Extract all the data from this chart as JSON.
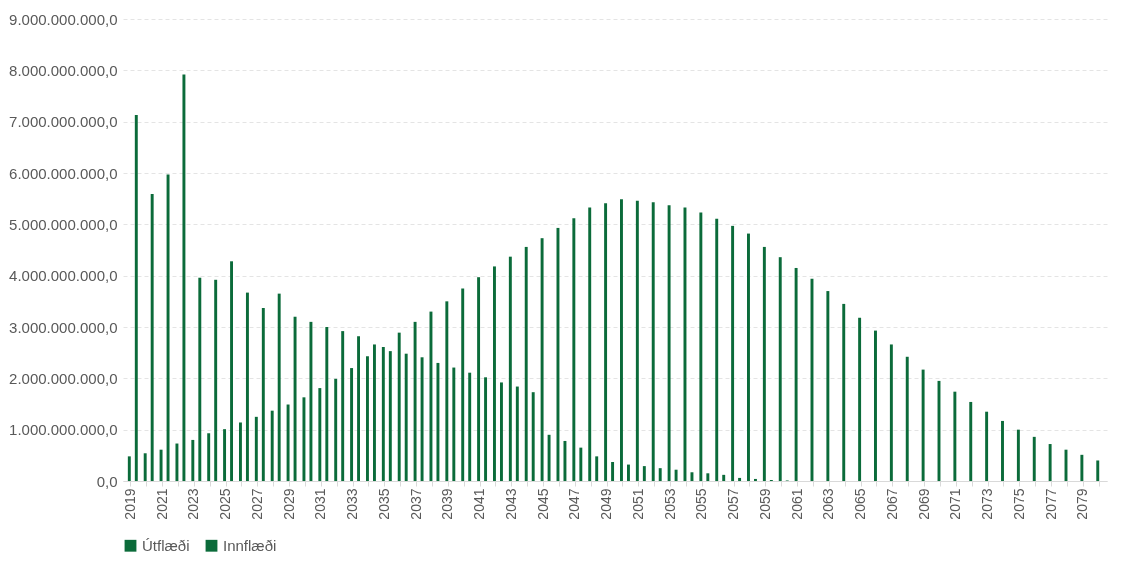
{
  "chart_data": {
    "type": "bar",
    "categories": [
      "2019",
      null,
      "2021",
      null,
      "2023",
      null,
      "2025",
      null,
      "2027",
      null,
      "2029",
      null,
      "2031",
      null,
      "2033",
      null,
      "2035",
      null,
      "2037",
      null,
      "2039",
      null,
      "2041",
      null,
      "2043",
      null,
      "2045",
      null,
      "2047",
      null,
      "2049",
      null,
      "2051",
      null,
      "2053",
      null,
      "2055",
      null,
      "2057",
      null,
      "2059",
      null,
      "2061",
      null,
      "2063",
      null,
      "2065",
      null,
      "2067",
      null,
      "2069",
      null,
      "2071",
      null,
      "2073",
      null,
      "2075",
      null,
      "2077",
      null,
      "2079",
      null
    ],
    "series": [
      {
        "name": "Útflæði",
        "color": "#0b6b3a",
        "values": [
          480000000,
          540000000,
          610000000,
          730000000,
          800000000,
          930000000,
          1010000000,
          1140000000,
          1250000000,
          1370000000,
          1490000000,
          1630000000,
          1810000000,
          1990000000,
          2200000000,
          2430000000,
          2610000000,
          2890000000,
          3100000000,
          3300000000,
          3500000000,
          3750000000,
          3970000000,
          4180000000,
          4370000000,
          4560000000,
          4730000000,
          4930000000,
          5120000000,
          5330000000,
          5410000000,
          5490000000,
          5460000000,
          5430000000,
          5370000000,
          5330000000,
          5230000000,
          5110000000,
          4970000000,
          4820000000,
          4560000000,
          4360000000,
          4150000000,
          3940000000,
          3700000000,
          3450000000,
          3180000000,
          2930000000,
          2660000000,
          2420000000,
          2170000000,
          1950000000,
          1740000000,
          1540000000,
          1350000000,
          1170000000,
          1000000000,
          860000000,
          720000000,
          610000000,
          510000000,
          400000000
        ]
      },
      {
        "name": "Innflæði",
        "color": "#0b6b3a",
        "values": [
          7130000000,
          5590000000,
          5970000000,
          7920000000,
          3960000000,
          3920000000,
          4280000000,
          3670000000,
          3370000000,
          3650000000,
          3200000000,
          3100000000,
          3000000000,
          2920000000,
          2820000000,
          2660000000,
          2530000000,
          2480000000,
          2410000000,
          2300000000,
          2210000000,
          2110000000,
          2020000000,
          1920000000,
          1840000000,
          1730000000,
          900000000,
          780000000,
          650000000,
          480000000,
          370000000,
          320000000,
          290000000,
          250000000,
          220000000,
          170000000,
          150000000,
          120000000,
          60000000,
          40000000,
          20000000,
          10000000,
          0,
          0,
          0,
          0,
          0,
          0,
          0,
          0,
          0,
          0,
          0,
          0,
          0,
          0,
          0,
          0,
          0,
          0,
          0,
          0
        ]
      }
    ],
    "ylim": [
      0,
      9000000000
    ],
    "yticks": [
      {
        "value": 0,
        "label": "0,0"
      },
      {
        "value": 1000000000,
        "label": "1.000.000.000,0"
      },
      {
        "value": 2000000000,
        "label": "2.000.000.000,0"
      },
      {
        "value": 3000000000,
        "label": "3.000.000.000,0"
      },
      {
        "value": 4000000000,
        "label": "4.000.000.000,0"
      },
      {
        "value": 5000000000,
        "label": "5.000.000.000,0"
      },
      {
        "value": 6000000000,
        "label": "6.000.000.000,0"
      },
      {
        "value": 7000000000,
        "label": "7.000.000.000,0"
      },
      {
        "value": 8000000000,
        "label": "8.000.000.000,0"
      },
      {
        "value": 9000000000,
        "label": "9.000.000.000,0"
      }
    ],
    "grid": "y",
    "legend": "bottom"
  }
}
